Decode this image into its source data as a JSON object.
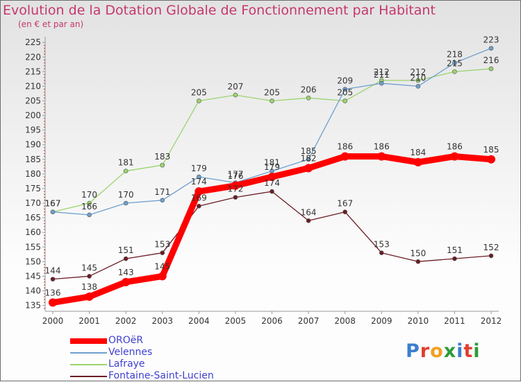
{
  "title": "Evolution de la Dotation Globale de Fonctionnement par Habitant",
  "subtitle": "(en € et par an)",
  "logo_text": "Proxiti",
  "logo_colors": [
    "#3b7fcf",
    "#e23d2e",
    "#f2a024",
    "#2c9c3a",
    "#3b7fcf",
    "#e23d2e",
    "#2c9c3a"
  ],
  "chart_data": {
    "type": "line",
    "x": [
      "2000",
      "2001",
      "2002",
      "2003",
      "2004",
      "2005",
      "2006",
      "2007",
      "2008",
      "2009",
      "2010",
      "2011",
      "2012"
    ],
    "ylim": [
      133,
      226
    ],
    "yticks": [
      "135",
      "140",
      "145",
      "150",
      "155",
      "160",
      "165",
      "170",
      "175",
      "180",
      "185",
      "190",
      "195",
      "200",
      "205",
      "210",
      "215",
      "220",
      "225"
    ],
    "grid": false,
    "legend_position": "bottom-left",
    "series": [
      {
        "name": "OROëR",
        "color": "#ff0000",
        "values": [
          136,
          138,
          143,
          145,
          174,
          176,
          179,
          182,
          186,
          186,
          184,
          186,
          185
        ]
      },
      {
        "name": "Velennes",
        "color": "#6ea0cf",
        "values": [
          167,
          166,
          170,
          171,
          179,
          177,
          181,
          185,
          209,
          211,
          210,
          218,
          223
        ]
      },
      {
        "name": "Lafraye",
        "color": "#9bd46e",
        "values": [
          167,
          170,
          181,
          183,
          205,
          207,
          205,
          206,
          205,
          212,
          212,
          215,
          216
        ]
      },
      {
        "name": "Fontaine-Saint-Lucien",
        "color": "#6b1c24",
        "values": [
          144,
          145,
          151,
          153,
          169,
          172,
          174,
          164,
          167,
          153,
          150,
          151,
          152
        ]
      }
    ]
  }
}
